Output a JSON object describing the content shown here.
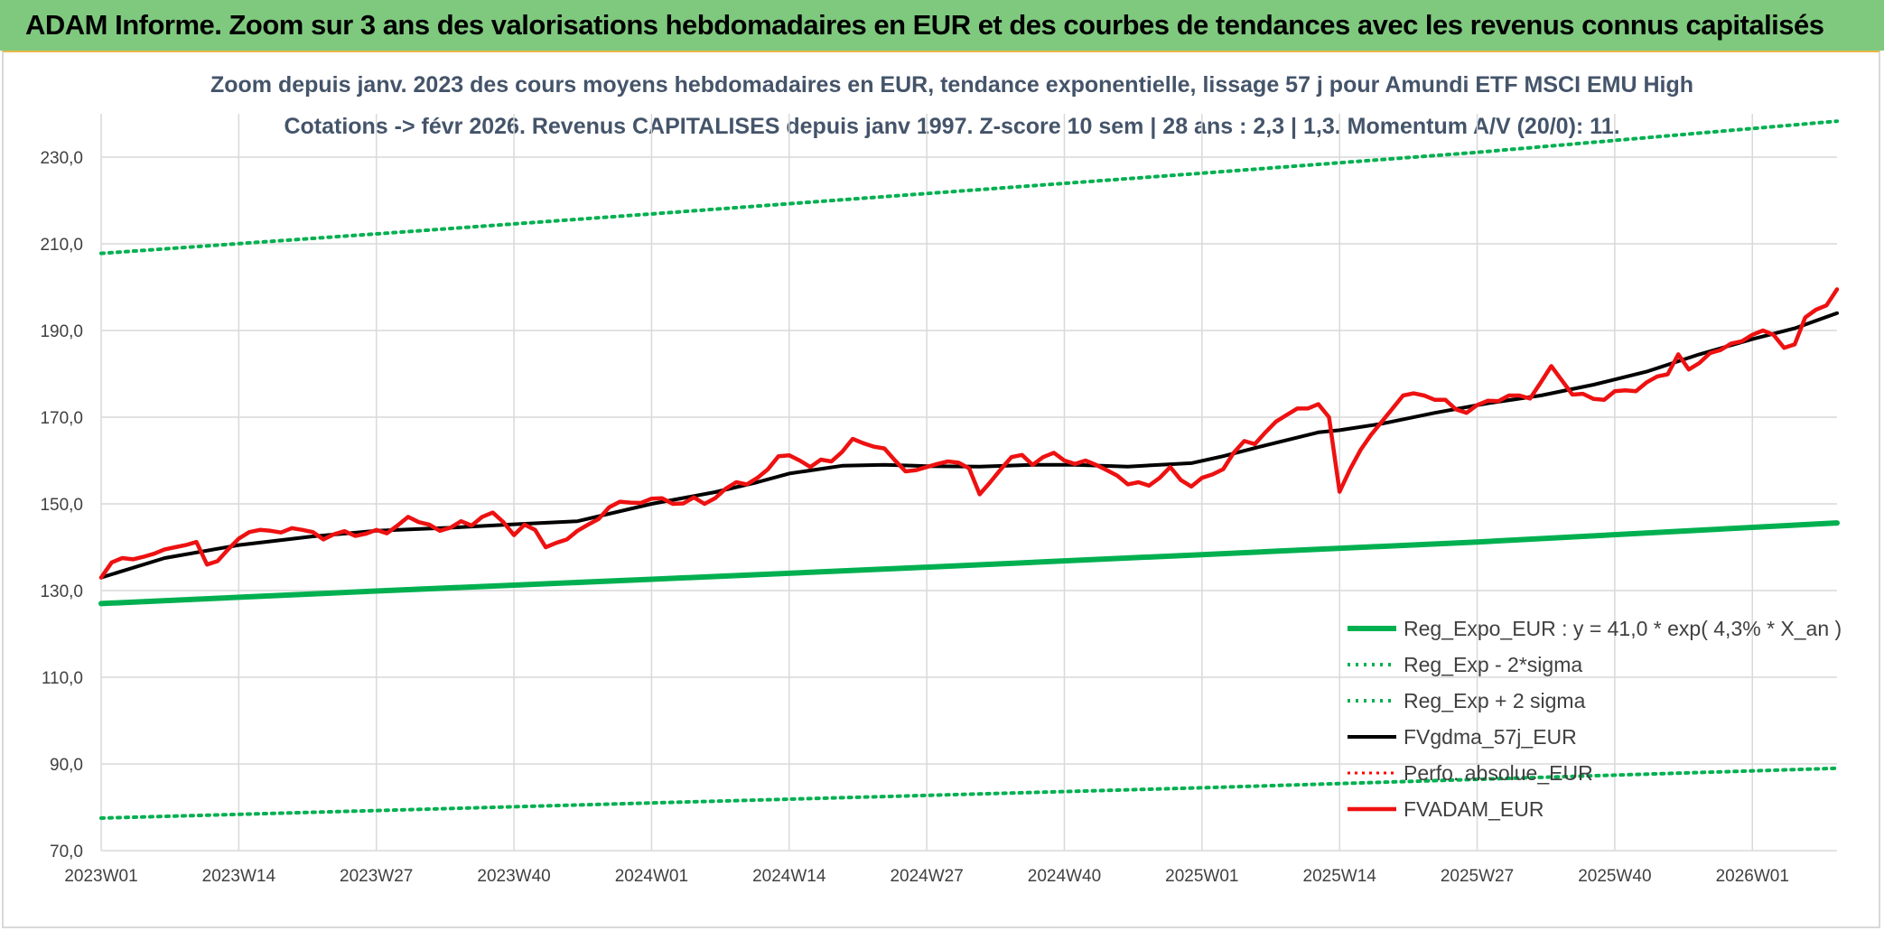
{
  "banner": {
    "title": "ADAM Informe. Zoom sur 3 ans des valorisations hebdomadaires en EUR et des courbes de tendances avec les revenus connus capitalisés"
  },
  "chart_data": {
    "type": "line",
    "title_line1": "Zoom depuis janv. 2023 des cours moyens hebdomadaires en EUR, tendance exponentielle, lissage 57 j pour Amundi ETF MSCI EMU High",
    "title_line2": "Cotations -> févr 2026. Revenus CAPITALISES depuis janv 1997. Z-score 10 sem | 28 ans : 2,3 | 1,3. Momentum A/V (20/0): 11.",
    "ylim": [
      70,
      240
    ],
    "yticks": [
      "70,0",
      "90,0",
      "110,0",
      "130,0",
      "150,0",
      "170,0",
      "190,0",
      "210,0",
      "230,0"
    ],
    "ytick_values": [
      70,
      90,
      110,
      130,
      150,
      170,
      190,
      210,
      230
    ],
    "xlim": [
      0,
      164
    ],
    "xticks": [
      "2023W01",
      "2023W14",
      "2023W27",
      "2023W40",
      "2024W01",
      "2024W14",
      "2024W27",
      "2024W40",
      "2025W01",
      "2025W14",
      "2025W27",
      "2025W40",
      "2026W01"
    ],
    "xtick_positions": [
      0,
      13,
      26,
      39,
      52,
      65,
      78,
      91,
      104,
      117,
      130,
      143,
      156
    ],
    "legend": [
      "Reg_Expo_EUR : y = 41,0 * exp( 4,3% *  X_an )",
      "Reg_Exp - 2*sigma",
      "Reg_Exp + 2 sigma",
      "FVgdma_57j_EUR",
      "Perfo. absolue_EUR",
      "FVADAM_EUR"
    ],
    "series": [
      {
        "name": "Reg_Expo_EUR",
        "color": "#00b050",
        "style": "solid",
        "x": [
          0,
          26,
          52,
          78,
          104,
          130,
          164
        ],
        "values": [
          127.0,
          129.9,
          132.6,
          135.4,
          138.3,
          141.2,
          145.6
        ]
      },
      {
        "name": "Reg_Exp - 2*sigma",
        "color": "#00b050",
        "style": "dotted",
        "x": [
          0,
          52,
          104,
          164
        ],
        "values": [
          77.5,
          81.0,
          84.5,
          89.0
        ]
      },
      {
        "name": "Reg_Exp + 2 sigma",
        "color": "#00b050",
        "style": "dotted",
        "x": [
          0,
          26,
          52,
          78,
          104,
          130,
          164
        ],
        "values": [
          207.8,
          212.3,
          216.9,
          221.6,
          226.3,
          231.1,
          238.3
        ]
      },
      {
        "name": "FVgdma_57j_EUR",
        "color": "#000000",
        "style": "solid",
        "x": [
          0,
          6,
          13,
          20,
          26,
          33,
          39,
          45,
          52,
          58,
          62,
          65,
          70,
          74,
          78,
          83,
          88,
          92,
          97,
          103,
          106,
          110,
          115,
          117,
          121,
          126,
          131,
          136,
          141,
          146,
          151,
          156,
          160,
          164
        ],
        "values": [
          133,
          137.5,
          140.5,
          142.5,
          143.8,
          144.5,
          145.3,
          146.0,
          150.0,
          152.7,
          155.0,
          157.0,
          158.8,
          159.0,
          158.7,
          158.6,
          159.0,
          159.0,
          158.6,
          159.4,
          161.0,
          163.5,
          166.5,
          167.0,
          168.5,
          171.0,
          173.2,
          175.0,
          177.5,
          180.5,
          184.5,
          188.0,
          190.5,
          194.0
        ]
      },
      {
        "name": "Perfo. absolue_EUR",
        "color": "#ff0000",
        "style": "dotted",
        "x": [],
        "values": []
      },
      {
        "name": "FVADAM_EUR",
        "color": "#ee1111",
        "style": "solid",
        "x": [
          0,
          1,
          2,
          3,
          4,
          5,
          6,
          7,
          8,
          9,
          10,
          11,
          12,
          13,
          14,
          15,
          16,
          17,
          18,
          19,
          20,
          21,
          22,
          23,
          24,
          25,
          26,
          27,
          28,
          29,
          30,
          31,
          32,
          33,
          34,
          35,
          36,
          37,
          38,
          39,
          40,
          41,
          42,
          43,
          44,
          45,
          46,
          47,
          48,
          49,
          50,
          51,
          52,
          53,
          54,
          55,
          56,
          57,
          58,
          59,
          60,
          61,
          62,
          63,
          64,
          65,
          66,
          67,
          68,
          69,
          70,
          71,
          72,
          73,
          74,
          75,
          76,
          77,
          78,
          79,
          80,
          81,
          82,
          83,
          84,
          85,
          86,
          87,
          88,
          89,
          90,
          91,
          92,
          93,
          94,
          95,
          96,
          97,
          98,
          99,
          100,
          101,
          102,
          103,
          104,
          105,
          106,
          107,
          108,
          109,
          110,
          111,
          112,
          113,
          114,
          115,
          116,
          117,
          118,
          119,
          120,
          121,
          122,
          123,
          124,
          125,
          126,
          127,
          128,
          129,
          130,
          131,
          132,
          133,
          134,
          135,
          136,
          137,
          138,
          139,
          140,
          141,
          142,
          143,
          144,
          145,
          146,
          147,
          148,
          149,
          150,
          151,
          152,
          153,
          154,
          155,
          156,
          157,
          158,
          159,
          160,
          161,
          162,
          163,
          164
        ],
        "values": [
          133.0,
          136.5,
          137.5,
          137.2,
          137.8,
          138.5,
          139.5,
          140.0,
          140.5,
          141.2,
          136.0,
          136.8,
          139.5,
          142.0,
          143.5,
          144.0,
          143.8,
          143.4,
          144.4,
          144.0,
          143.5,
          141.8,
          143.0,
          143.7,
          142.6,
          143.1,
          144.0,
          143.2,
          145.0,
          147.0,
          145.8,
          145.2,
          143.8,
          144.5,
          146.0,
          145.0,
          147.0,
          148.0,
          145.8,
          142.8,
          145.2,
          144.0,
          140.0,
          141.0,
          141.8,
          143.8,
          145.2,
          146.5,
          149.2,
          150.5,
          150.3,
          150.2,
          151.2,
          151.3,
          150.0,
          150.1,
          151.5,
          150.0,
          151.3,
          153.5,
          155.0,
          154.5,
          156.0,
          158.0,
          161.0,
          161.2,
          160.0,
          158.5,
          160.2,
          159.8,
          162.0,
          165.0,
          164.0,
          163.2,
          162.8,
          160.0,
          157.5,
          157.8,
          158.5,
          159.2,
          159.8,
          159.5,
          158.2,
          152.2,
          155.0,
          158.0,
          160.8,
          161.3,
          159.0,
          160.8,
          161.8,
          160.0,
          159.2,
          160.0,
          159.0,
          157.8,
          156.5,
          154.5,
          155.0,
          154.2,
          156.0,
          158.5,
          155.5,
          154.0,
          156.0,
          156.8,
          158.0,
          161.8,
          164.5,
          163.8,
          166.5,
          169.0,
          170.5,
          172.0,
          172.0,
          173.0,
          170.0,
          152.8,
          158.0,
          162.5,
          166.0,
          169.0,
          172.0,
          175.0,
          175.5,
          175.0,
          174.0,
          174.0,
          171.8,
          171.0,
          172.8,
          173.8,
          173.7,
          175.0,
          175.0,
          174.3,
          178.0,
          181.8,
          178.5,
          175.2,
          175.4,
          174.2,
          174.0,
          176.0,
          176.2,
          176.0,
          178.0,
          179.4,
          179.9,
          184.5,
          181.0,
          182.5,
          184.8,
          185.5,
          187.0,
          187.5,
          189.0,
          190.0,
          189.0,
          186.0,
          186.8,
          193.0,
          194.8,
          195.8,
          199.5
        ]
      }
    ]
  }
}
